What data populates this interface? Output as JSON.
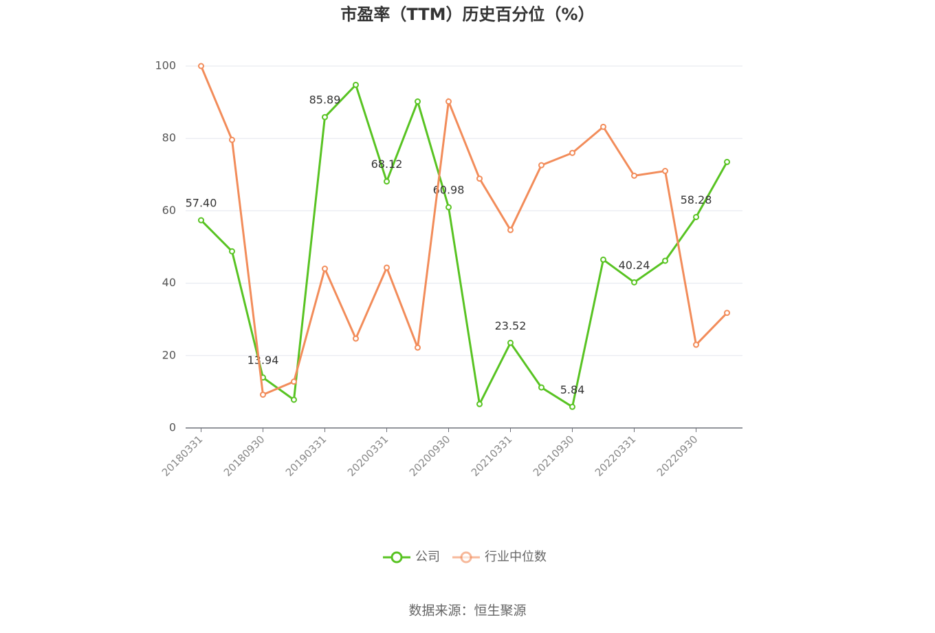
{
  "chart_data": {
    "type": "line",
    "title": "市盈率（TTM）历史百分位（%）",
    "categories": [
      "20180331",
      null,
      "20180930",
      null,
      "20190331",
      null,
      "20200331",
      null,
      "20200930",
      null,
      "20210331",
      null,
      "20210930",
      null,
      "20220331",
      null,
      "20220930",
      null
    ],
    "series": [
      {
        "name": "公司",
        "color": "#58c322",
        "values": [
          57.4,
          48.8,
          13.94,
          7.8,
          85.89,
          94.8,
          68.12,
          90.2,
          60.98,
          6.6,
          23.52,
          11.2,
          5.84,
          46.5,
          40.24,
          46.2,
          58.28,
          73.5
        ],
        "value_labels": [
          "57.40",
          null,
          "13.94",
          null,
          "85.89",
          null,
          "68.12",
          null,
          "60.98",
          null,
          "23.52",
          null,
          "5.84",
          null,
          "40.24",
          null,
          "58.28",
          null
        ]
      },
      {
        "name": "行业中位数",
        "color": "#f28c5a",
        "values": [
          100,
          79.6,
          9.2,
          12.8,
          44,
          24.7,
          44.3,
          22.2,
          90.2,
          68.9,
          54.7,
          72.6,
          76,
          83.2,
          69.7,
          71,
          23,
          31.8
        ]
      }
    ],
    "ylim": [
      0,
      100
    ],
    "yticks": [
      0,
      20,
      40,
      60,
      80,
      100
    ],
    "grid": true,
    "legend": "bottom",
    "source": "数据来源：恒生聚源"
  }
}
